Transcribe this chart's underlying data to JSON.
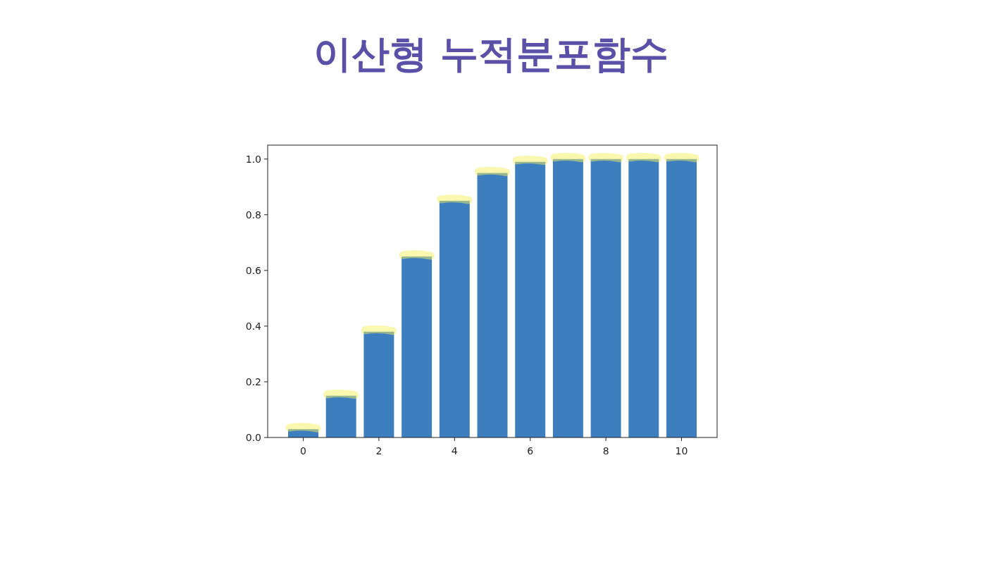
{
  "chart_data": {
    "type": "bar",
    "title": "이산형 누적분포함수",
    "x": [
      0,
      1,
      2,
      3,
      4,
      5,
      6,
      7,
      8,
      9,
      10
    ],
    "values": [
      0.03,
      0.15,
      0.38,
      0.65,
      0.85,
      0.95,
      0.99,
      1.0,
      1.0,
      1.0,
      1.0
    ],
    "color": "#3d7ebf",
    "xlim": [
      -0.94,
      10.94
    ],
    "xticks": [
      0,
      2,
      4,
      6,
      8,
      10
    ],
    "ylim": [
      0,
      1.05
    ],
    "yticks": [
      {
        "value": 0,
        "label": "0.0"
      },
      {
        "value": 0.2,
        "label": "0.2"
      },
      {
        "value": 0.4,
        "label": "0.4"
      },
      {
        "value": 0.6,
        "label": "0.6"
      },
      {
        "value": 0.8,
        "label": "0.8"
      },
      {
        "value": 1,
        "label": "1.0"
      }
    ],
    "grid": false,
    "legend": false
  }
}
